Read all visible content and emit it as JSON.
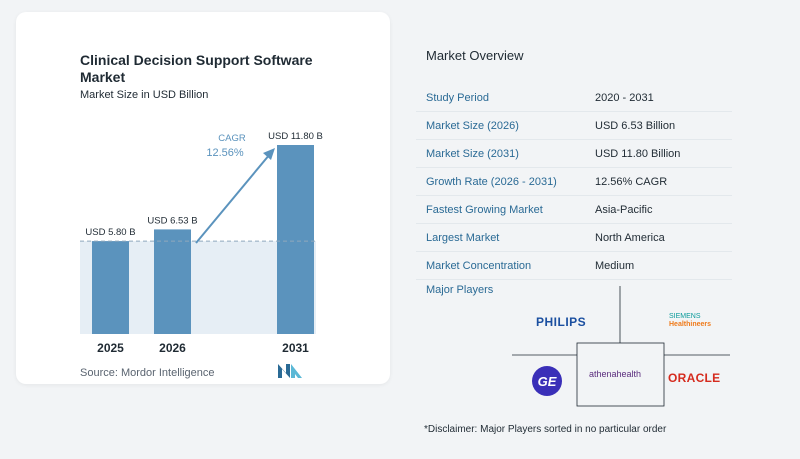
{
  "chart_data": {
    "type": "bar",
    "title": "Clinical Decision Support Software Market",
    "subtitle": "Market Size in USD Billion",
    "categories": [
      "2025",
      "2026",
      "2031"
    ],
    "values": [
      5.8,
      6.53,
      11.8
    ],
    "data_labels": [
      "USD 5.80 B",
      "USD 6.53 B",
      "USD 11.80 B"
    ],
    "annotation": {
      "label": "CAGR",
      "value": "12.56%"
    },
    "colors": {
      "bar": "#5b93bd",
      "band": "#e6eef5",
      "arrow": "#5b93bd",
      "annotation": "#5b93bd"
    }
  },
  "source": "Source:  Mordor Intelligence",
  "overview": {
    "title": "Market Overview",
    "rows": [
      {
        "label": "Study Period",
        "value": "2020 - 2031"
      },
      {
        "label": "Market Size (2026)",
        "value": "USD 6.53 Billion"
      },
      {
        "label": "Market Size (2031)",
        "value": "USD 11.80 Billion"
      },
      {
        "label": "Growth Rate (2026 - 2031)",
        "value": "12.56% CAGR"
      },
      {
        "label": "Fastest Growing Market",
        "value": "Asia-Pacific"
      },
      {
        "label": "Largest Market",
        "value": "North America"
      },
      {
        "label": "Market Concentration",
        "value": "Medium"
      }
    ]
  },
  "players": {
    "title": "Major Players",
    "philips": "PHILIPS",
    "siemens_1": "SIEMENS",
    "siemens_2": "Healthineers",
    "ge": "GE",
    "athena": "athenahealth",
    "oracle": "ORACLE"
  },
  "disclaimer": "*Disclaimer: Major Players sorted in no particular order"
}
